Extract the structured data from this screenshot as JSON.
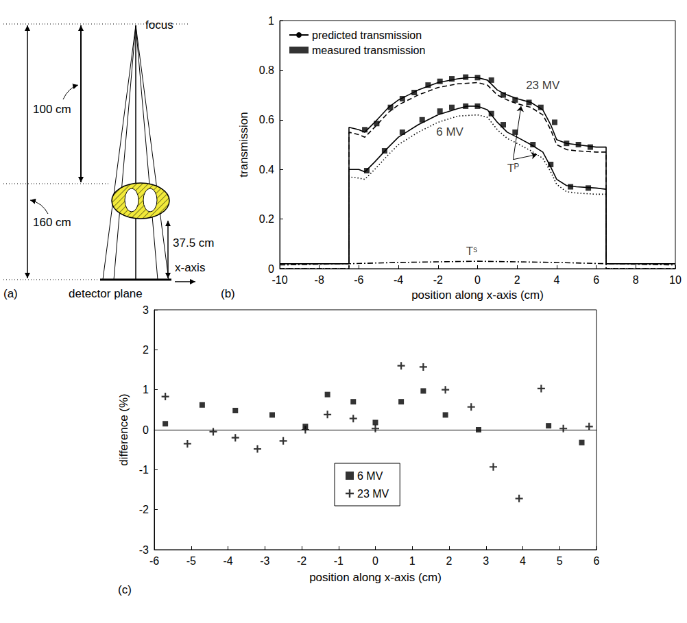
{
  "diagram": {
    "panel_label": "(a)",
    "focus": "focus",
    "distance_focus_body": "100 cm",
    "distance_focus_detector": "160 cm",
    "distance_body_detector": "37.5 cm",
    "axis": "x-axis",
    "detector": "detector plane"
  },
  "chart_data": [
    {
      "type": "line",
      "panel_label": "(b)",
      "x_label": "position along x-axis (cm)",
      "y_label": "transmission",
      "xlim": [
        -10,
        10
      ],
      "xticks": [
        -10,
        -8,
        -6,
        -4,
        -2,
        0,
        2,
        4,
        6,
        8,
        10
      ],
      "ylim": [
        0,
        1
      ],
      "yticks": [
        0,
        0.2,
        0.4,
        0.6,
        0.8,
        1
      ],
      "grid": false,
      "legend": "upper left",
      "series": [
        {
          "name": "predicted transmission",
          "type": "line",
          "color": "#000000",
          "line_style": "solid",
          "x": [
            -10,
            -6.5,
            -6.5,
            -6,
            -5.7,
            -5.2,
            -4.5,
            -4,
            -3,
            -2,
            -1,
            -0.5,
            0,
            0.5,
            1,
            1.5,
            2,
            2.7,
            3.3,
            3.7,
            4,
            4.5,
            5,
            6,
            6.5,
            6.5,
            10
          ],
          "values": [
            0.02,
            0.02,
            0.57,
            0.56,
            0.55,
            0.59,
            0.65,
            0.68,
            0.72,
            0.75,
            0.765,
            0.77,
            0.77,
            0.76,
            0.72,
            0.7,
            0.685,
            0.67,
            0.64,
            0.58,
            0.52,
            0.505,
            0.5,
            0.49,
            0.49,
            0.02,
            0.02
          ]
        },
        {
          "name": "measured transmission",
          "type": "scatter",
          "color": "#000000",
          "marker": "square",
          "x": [
            -5.7,
            -5.1,
            -4.4,
            -3.8,
            -3.2,
            -2.5,
            -1.9,
            -1.3,
            -0.6,
            0,
            0.7,
            1.3,
            1.9,
            2.6,
            3.2,
            3.9,
            4.5,
            5.1,
            5.7
          ],
          "values": [
            0.56,
            0.585,
            0.65,
            0.685,
            0.71,
            0.74,
            0.755,
            0.765,
            0.772,
            0.77,
            0.76,
            0.7,
            0.68,
            0.67,
            0.65,
            0.59,
            0.505,
            0.5,
            0.49
          ]
        },
        {
          "type": "line",
          "color": "#000000",
          "line_style": "dashed",
          "x": [
            -10,
            -6.5,
            -6.5,
            -6,
            -5.7,
            -5.2,
            -4.5,
            -4,
            -3,
            -2,
            -1,
            0,
            0.5,
            1,
            1.5,
            2,
            2.7,
            3.3,
            3.7,
            4,
            4.5,
            5,
            6,
            6.5,
            6.5,
            10
          ],
          "values": [
            0,
            0,
            0.55,
            0.54,
            0.53,
            0.57,
            0.63,
            0.66,
            0.7,
            0.73,
            0.745,
            0.75,
            0.74,
            0.7,
            0.68,
            0.665,
            0.65,
            0.62,
            0.56,
            0.5,
            0.48,
            0.475,
            0.47,
            0.47,
            0,
            0
          ]
        },
        {
          "name": "predicted transmission",
          "type": "line",
          "color": "#000000",
          "line_style": "solid",
          "x": [
            -10,
            -6.5,
            -6.5,
            -6,
            -5.7,
            -5.2,
            -4.5,
            -4,
            -3,
            -2,
            -1,
            -0.5,
            0,
            0.5,
            1,
            1.5,
            2,
            2.7,
            3.3,
            3.7,
            4,
            4.5,
            5,
            6,
            6.5,
            6.5,
            10
          ],
          "values": [
            0.02,
            0.02,
            0.4,
            0.4,
            0.39,
            0.43,
            0.49,
            0.53,
            0.58,
            0.62,
            0.645,
            0.655,
            0.655,
            0.64,
            0.59,
            0.55,
            0.53,
            0.5,
            0.47,
            0.41,
            0.36,
            0.335,
            0.33,
            0.325,
            0.32,
            0.02,
            0.02
          ]
        },
        {
          "name": "measured transmission",
          "type": "scatter",
          "color": "#000000",
          "marker": "square",
          "x": [
            -5.6,
            -4.7,
            -3.8,
            -2.8,
            -1.9,
            -1.3,
            -0.6,
            0,
            0.7,
            1.3,
            1.9,
            2.8,
            3.7,
            4.7,
            5.6
          ],
          "values": [
            0.395,
            0.475,
            0.55,
            0.6,
            0.635,
            0.65,
            0.655,
            0.655,
            0.625,
            0.58,
            0.55,
            0.5,
            0.42,
            0.33,
            0.325
          ]
        },
        {
          "type": "line",
          "color": "#000000",
          "line_style": "dotted",
          "x": [
            -10,
            -6.5,
            -6.5,
            -6,
            -5.7,
            -5.2,
            -4.5,
            -4,
            -3,
            -2,
            -1,
            0,
            0.5,
            1,
            1.5,
            2,
            2.7,
            3.3,
            3.7,
            4,
            4.5,
            5,
            6,
            6.5,
            6.5,
            10
          ],
          "values": [
            0,
            0,
            0.37,
            0.365,
            0.36,
            0.4,
            0.46,
            0.5,
            0.55,
            0.59,
            0.615,
            0.62,
            0.61,
            0.56,
            0.525,
            0.505,
            0.475,
            0.445,
            0.39,
            0.34,
            0.31,
            0.305,
            0.3,
            0.3,
            0,
            0
          ]
        },
        {
          "type": "line",
          "color": "#000000",
          "line_style": "dashdot",
          "x": [
            -10,
            -6.5,
            -4,
            0,
            4,
            6.5,
            10
          ],
          "values": [
            0.015,
            0.02,
            0.025,
            0.03,
            0.025,
            0.02,
            0.015
          ]
        }
      ],
      "annotations": [
        {
          "text": "23 MV",
          "x": 3.3,
          "y": 0.74
        },
        {
          "text": "6 MV",
          "x": -1.4,
          "y": 0.55
        },
        {
          "text": "Tᴾ",
          "x": 1.8,
          "y": 0.44,
          "points_to": [
            [
              2.2,
              0.655
            ],
            [
              3.0,
              0.46
            ]
          ]
        },
        {
          "text": "Tˢ",
          "x": -0.3,
          "y": 0.07
        }
      ]
    },
    {
      "type": "scatter",
      "panel_label": "(c)",
      "x_label": "position along x-axis (cm)",
      "y_label": "difference (%)",
      "xlim": [
        -6,
        6
      ],
      "xticks": [
        -6,
        -5,
        -4,
        -3,
        -2,
        -1,
        0,
        1,
        2,
        3,
        4,
        5,
        6
      ],
      "ylim": [
        -3,
        3
      ],
      "yticks": [
        -3,
        -2,
        -1,
        0,
        1,
        2,
        3
      ],
      "grid": false,
      "legend": "lower center",
      "series": [
        {
          "name": "6 MV",
          "color": "#000000",
          "marker": "square",
          "x": [
            -5.7,
            -4.7,
            -3.8,
            -2.8,
            -1.9,
            -1.3,
            -0.6,
            0,
            0.7,
            1.3,
            1.9,
            2.8,
            4.7,
            5.6
          ],
          "values": [
            0.15,
            0.62,
            0.48,
            0.37,
            0.08,
            0.88,
            0.7,
            0.18,
            0.7,
            0.97,
            0.37,
            0.0,
            0.1,
            -0.32
          ]
        },
        {
          "name": "23 MV",
          "color": "#000000",
          "marker": "plus",
          "x": [
            -5.7,
            -5.1,
            -4.4,
            -3.8,
            -3.2,
            -2.5,
            -1.9,
            -1.3,
            -0.6,
            0,
            0.7,
            1.3,
            1.9,
            2.6,
            3.2,
            3.9,
            4.5,
            5.1,
            5.8
          ],
          "values": [
            0.83,
            -0.35,
            -0.05,
            -0.2,
            -0.48,
            -0.28,
            0.0,
            0.38,
            0.28,
            0.03,
            1.6,
            1.57,
            1.0,
            0.57,
            -0.93,
            -1.72,
            1.03,
            0.03,
            0.08
          ]
        }
      ]
    }
  ]
}
